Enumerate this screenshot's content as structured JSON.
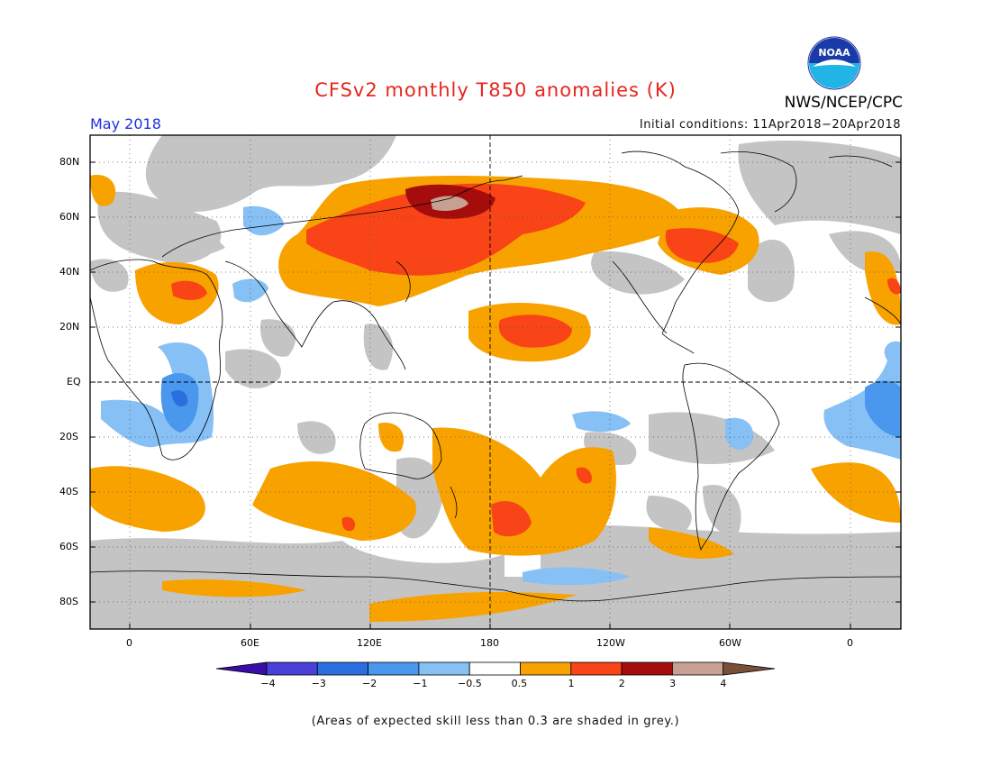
{
  "header": {
    "title": "CFSv2 monthly T850 anomalies (K)",
    "month": "May 2018",
    "initial_conditions": "Initial conditions: 11Apr2018−20Apr2018",
    "agency": "NWS/NCEP/CPC",
    "logo_text": "NOAA"
  },
  "axes": {
    "lat_labels": [
      "80N",
      "60N",
      "40N",
      "20N",
      "EQ",
      "20S",
      "40S",
      "60S",
      "80S"
    ],
    "lon_labels": [
      "0",
      "60E",
      "120E",
      "180",
      "120W",
      "60W",
      "0"
    ]
  },
  "colorbar": {
    "labels": [
      "−4",
      "−3",
      "−2",
      "−1",
      "−0.5",
      "0.5",
      "1",
      "2",
      "3",
      "4"
    ],
    "colors": [
      "#3a0ca8",
      "#4a3fd6",
      "#2a6ee0",
      "#4a97ee",
      "#86c0f5",
      "#ffffff",
      "#f8a200",
      "#f84416",
      "#a50d0d",
      "#c8a092",
      "#7a4f3a"
    ]
  },
  "legend_colors": {
    "low_skill_grey": "#c4c4c4",
    "warm_05_1": "#f8a200",
    "warm_1_2": "#f84416",
    "warm_2_3": "#a50d0d",
    "warm_3_4": "#c8a092",
    "cool_05_1": "#86c0f5",
    "cool_1_2": "#4a97ee",
    "cool_2_3": "#2a6ee0"
  },
  "footnote": "(Areas of expected skill less than 0.3 are shaded in grey.)"
}
